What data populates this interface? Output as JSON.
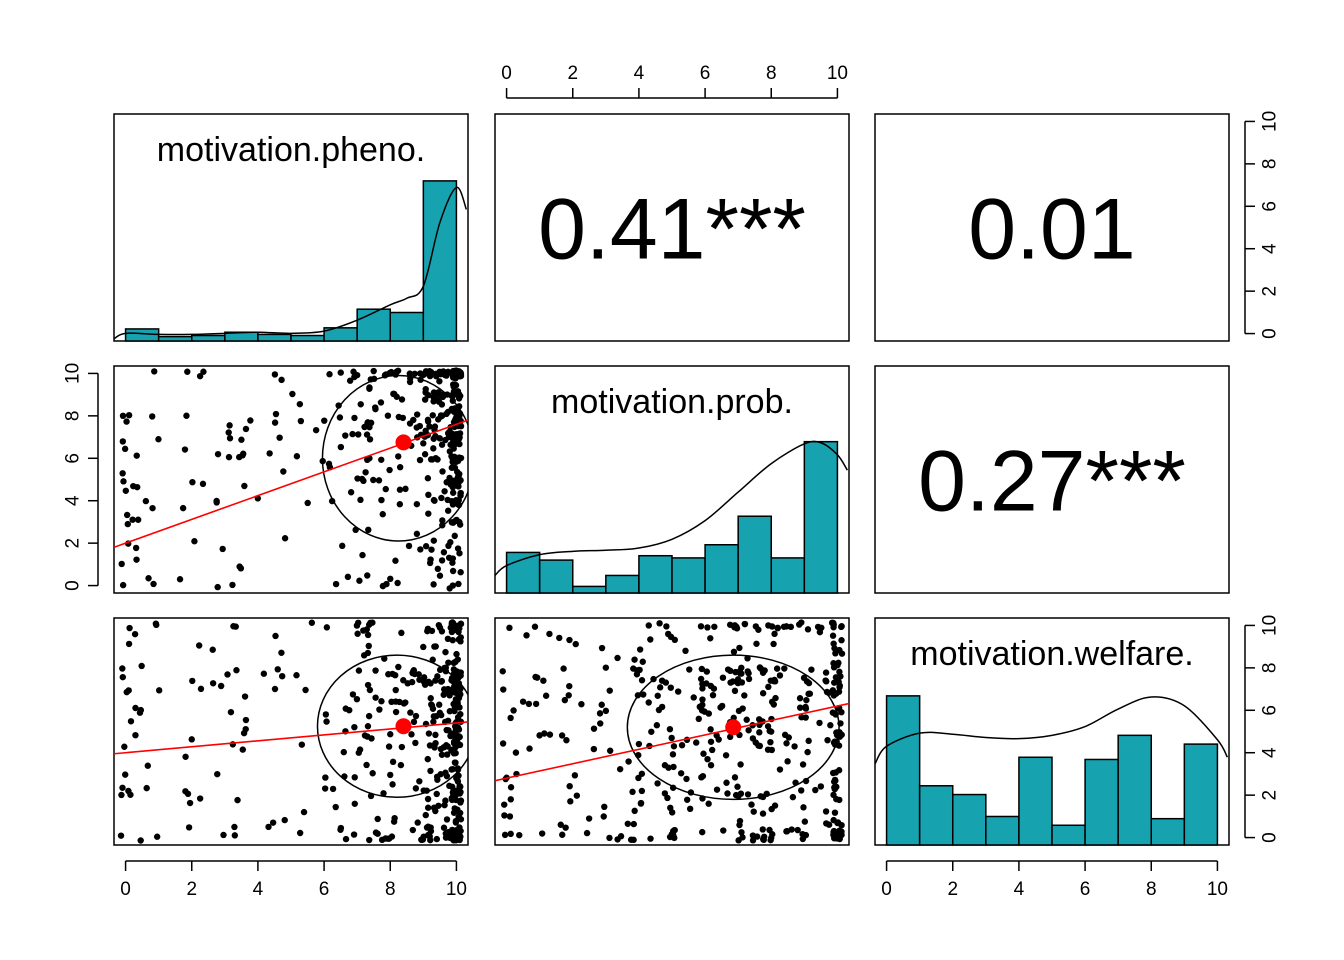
{
  "chart_data": {
    "type": "scatter",
    "variables": [
      "motivation.pheno.",
      "motivation.prob.",
      "motivation.welfare."
    ],
    "axis_range": [
      0,
      10
    ],
    "axis_ticks": [
      "0",
      "2",
      "4",
      "6",
      "8",
      "10"
    ],
    "axis_tick_values": [
      0,
      2,
      4,
      6,
      8,
      10
    ],
    "correlations": [
      {
        "pair": [
          "motivation.pheno.",
          "motivation.prob."
        ],
        "label": "0.41***",
        "r": 0.41
      },
      {
        "pair": [
          "motivation.pheno.",
          "motivation.welfare."
        ],
        "label": "0.01",
        "r": 0.01
      },
      {
        "pair": [
          "motivation.prob.",
          "motivation.welfare."
        ],
        "label": "0.27***",
        "r": 0.27
      }
    ],
    "histograms": [
      {
        "variable": "motivation.pheno.",
        "bin_edges": [
          0,
          1,
          2,
          3,
          4,
          5,
          6,
          7,
          8,
          9,
          10
        ],
        "densities": [
          0.55,
          0.2,
          0.25,
          0.4,
          0.3,
          0.25,
          0.6,
          1.45,
          1.3,
          7.3
        ],
        "fill": "#17a2b0"
      },
      {
        "variable": "motivation.prob.",
        "bin_edges": [
          0,
          1,
          2,
          3,
          4,
          5,
          6,
          7,
          8,
          9,
          10
        ],
        "densities": [
          1.85,
          1.5,
          0.3,
          0.8,
          1.7,
          1.6,
          2.2,
          3.5,
          1.6,
          6.9
        ],
        "fill": "#17a2b0"
      },
      {
        "variable": "motivation.welfare.",
        "bin_edges": [
          0,
          1,
          2,
          3,
          4,
          5,
          6,
          7,
          8,
          9,
          10
        ],
        "densities": [
          6.8,
          2.7,
          2.3,
          1.3,
          4.0,
          0.9,
          3.9,
          5.0,
          1.2,
          4.6
        ],
        "fill": "#17a2b0"
      }
    ],
    "density_curves": [
      {
        "variable": "motivation.pheno.",
        "x": [
          -0.5,
          0,
          1,
          2,
          3,
          4,
          5,
          6,
          7,
          8,
          8.5,
          9,
          9.5,
          10,
          10.3
        ],
        "y": [
          0.1,
          0.35,
          0.3,
          0.3,
          0.35,
          0.4,
          0.35,
          0.45,
          0.95,
          1.65,
          1.95,
          2.5,
          5.4,
          7.0,
          6.0
        ]
      },
      {
        "variable": "motivation.prob.",
        "x": [
          -0.5,
          0,
          1,
          2,
          3,
          4,
          5,
          6,
          7,
          8,
          9,
          9.5,
          10,
          10.3
        ],
        "y": [
          0.8,
          1.25,
          1.75,
          1.9,
          1.95,
          2.05,
          2.45,
          3.3,
          4.6,
          5.9,
          6.8,
          6.85,
          6.3,
          5.6
        ]
      },
      {
        "variable": "motivation.welfare.",
        "x": [
          -0.4,
          0,
          1,
          2,
          3,
          4,
          5,
          6,
          7,
          8,
          9,
          10,
          10.3
        ],
        "y": [
          3.7,
          4.5,
          5.1,
          5.05,
          4.9,
          4.85,
          5.0,
          5.4,
          6.2,
          6.75,
          6.35,
          4.8,
          4.0
        ]
      }
    ],
    "regressions": [
      {
        "x": "motivation.pheno.",
        "y": "motivation.prob.",
        "intercept": 2.0,
        "slope": 0.56,
        "mean": [
          8.4,
          6.75
        ],
        "ellipse": {
          "cx": 8.25,
          "cy": 6.0,
          "rx": 2.3,
          "ry": 3.9
        }
      },
      {
        "x": "motivation.pheno.",
        "y": "motivation.welfare.",
        "intercept": 4.0,
        "slope": 0.14,
        "mean": [
          8.4,
          5.25
        ],
        "ellipse": {
          "cx": 8.2,
          "cy": 5.25,
          "rx": 2.4,
          "ry": 3.35
        }
      },
      {
        "x": "motivation.prob.",
        "y": "motivation.welfare.",
        "intercept": 2.8,
        "slope": 0.34,
        "mean": [
          6.85,
          5.2
        ],
        "ellipse": {
          "cx": 6.85,
          "cy": 5.2,
          "rx": 3.2,
          "ry": 3.4
        }
      }
    ],
    "colors": {
      "histogram": "#17a2b0",
      "fit_line": "#ff0000",
      "points": "#000000"
    },
    "grid": false
  }
}
